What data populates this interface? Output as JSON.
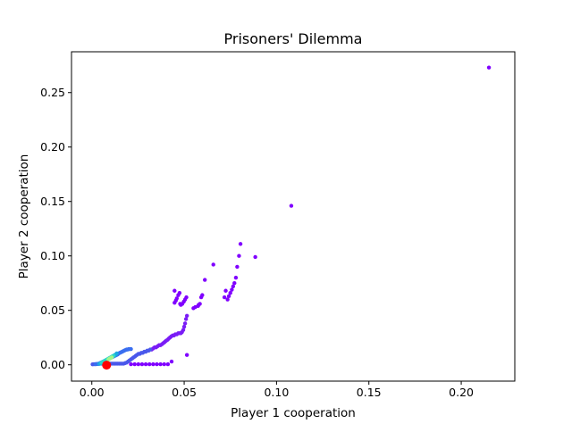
{
  "chart_data": {
    "type": "scatter",
    "title": "Prisoners' Dilemma",
    "xlabel": "Player 1 cooperation",
    "ylabel": "Player 2 cooperation",
    "xlim": [
      -0.011,
      0.229
    ],
    "ylim": [
      -0.015,
      0.2875
    ],
    "xticks": [
      0.0,
      0.05,
      0.1,
      0.15,
      0.2
    ],
    "xtick_labels": [
      "0.00",
      "0.05",
      "0.10",
      "0.15",
      "0.20"
    ],
    "yticks": [
      0.0,
      0.05,
      0.1,
      0.15,
      0.2,
      0.25
    ],
    "ytick_labels": [
      "0.00",
      "0.05",
      "0.10",
      "0.15",
      "0.20",
      "0.25"
    ],
    "grid": false,
    "legend": "none",
    "colormap": "rainbow",
    "series": [
      {
        "color": "#8000ff",
        "x": [
          0.215,
          0.108,
          0.0885,
          0.0805,
          0.0797,
          0.0787,
          0.078,
          0.0772,
          0.0765,
          0.0758,
          0.075,
          0.0742,
          0.0735,
          0.0725,
          0.0718,
          0.0658,
          0.0612,
          0.0598,
          0.0592,
          0.0585,
          0.0578,
          0.0575,
          0.056,
          0.055,
          0.0512,
          0.0505,
          0.0498,
          0.049,
          0.0482,
          0.0475,
          0.0468,
          0.046,
          0.0455,
          0.0448,
          0.0448,
          0.0478,
          0.0515,
          0.0432,
          0.0412,
          0.0392,
          0.0372,
          0.0352,
          0.0332,
          0.0312,
          0.0292,
          0.0272,
          0.0252,
          0.0232,
          0.0212
        ],
        "y": [
          0.273,
          0.146,
          0.099,
          0.111,
          0.1,
          0.09,
          0.08,
          0.075,
          0.072,
          0.069,
          0.066,
          0.063,
          0.06,
          0.068,
          0.062,
          0.092,
          0.078,
          0.064,
          0.062,
          0.056,
          0.055,
          0.054,
          0.053,
          0.052,
          0.062,
          0.06,
          0.058,
          0.056,
          0.055,
          0.066,
          0.064,
          0.061,
          0.059,
          0.057,
          0.068,
          0.056,
          0.009,
          0.003,
          0.0005,
          0.0005,
          0.0005,
          0.0005,
          0.0005,
          0.0005,
          0.0005,
          0.0005,
          0.0005,
          0.0005,
          0.0005
        ]
      },
      {
        "color": "#7a1cf6",
        "x": [
          0.0515,
          0.051,
          0.0505,
          0.05,
          0.0495,
          0.0488,
          0.0482,
          0.0476,
          0.0468,
          0.046,
          0.0452,
          0.0445,
          0.0438,
          0.043,
          0.0423,
          0.0416,
          0.041,
          0.0402,
          0.0395,
          0.0388,
          0.038,
          0.0372,
          0.0364,
          0.0356,
          0.0348,
          0.034,
          0.0332,
          0.0324
        ],
        "y": [
          0.045,
          0.042,
          0.038,
          0.035,
          0.032,
          0.03,
          0.029,
          0.029,
          0.029,
          0.028,
          0.028,
          0.027,
          0.027,
          0.026,
          0.025,
          0.024,
          0.023,
          0.022,
          0.021,
          0.02,
          0.019,
          0.018,
          0.018,
          0.017,
          0.016,
          0.016,
          0.015,
          0.014
        ]
      },
      {
        "color": "#4a58eb",
        "x": [
          0.0316,
          0.0308,
          0.03,
          0.0292,
          0.0284,
          0.0276,
          0.0268,
          0.026,
          0.0252,
          0.0244,
          0.0236,
          0.0228,
          0.022,
          0.0212,
          0.0204,
          0.0196,
          0.0188,
          0.018,
          0.0172,
          0.0164,
          0.0156,
          0.0148,
          0.014,
          0.0132,
          0.0124,
          0.0116,
          0.0108,
          0.01,
          0.0092,
          0.0084,
          0.0076,
          0.0068,
          0.006,
          0.0052,
          0.0044,
          0.0036,
          0.0028,
          0.002,
          0.0012,
          0.0004
        ],
        "y": [
          0.014,
          0.013,
          0.013,
          0.012,
          0.012,
          0.011,
          0.011,
          0.01,
          0.01,
          0.009,
          0.008,
          0.007,
          0.006,
          0.005,
          0.004,
          0.003,
          0.002,
          0.0015,
          0.001,
          0.001,
          0.001,
          0.001,
          0.001,
          0.001,
          0.001,
          0.001,
          0.001,
          0.001,
          0.001,
          0.001,
          0.001,
          0.001,
          0.001,
          0.001,
          0.001,
          0.0008,
          0.0007,
          0.0006,
          0.0005,
          0.0004
        ]
      },
      {
        "color": "#3a6ef0",
        "x": [
          0.0212,
          0.0206,
          0.02,
          0.0194,
          0.0188,
          0.0182,
          0.0176,
          0.017,
          0.0164,
          0.0158,
          0.0152,
          0.0146,
          0.014,
          0.0134,
          0.0128,
          0.0122,
          0.0116,
          0.011,
          0.0104,
          0.0098,
          0.0092,
          0.0086,
          0.008,
          0.0074,
          0.0068,
          0.0062,
          0.0056,
          0.005,
          0.0044,
          0.0038,
          0.0032,
          0.0026,
          0.002
        ],
        "y": [
          0.0145,
          0.0145,
          0.0145,
          0.014,
          0.014,
          0.0135,
          0.013,
          0.0125,
          0.012,
          0.0115,
          0.011,
          0.0105,
          0.0095,
          0.009,
          0.0085,
          0.008,
          0.0075,
          0.007,
          0.0065,
          0.006,
          0.0055,
          0.005,
          0.0045,
          0.004,
          0.0035,
          0.003,
          0.0025,
          0.002,
          0.0015,
          0.001,
          0.0008,
          0.0006,
          0.0005
        ]
      },
      {
        "color": "#1ca8e0",
        "x": [
          0.0135,
          0.013,
          0.0125,
          0.012,
          0.0115,
          0.011,
          0.0105,
          0.01,
          0.0095,
          0.009,
          0.0085,
          0.008,
          0.0075,
          0.007,
          0.0065,
          0.006,
          0.0055,
          0.005,
          0.0045,
          0.004
        ],
        "y": [
          0.0105,
          0.0095,
          0.009,
          0.0085,
          0.008,
          0.0075,
          0.007,
          0.0065,
          0.006,
          0.0055,
          0.005,
          0.0045,
          0.004,
          0.0035,
          0.003,
          0.0025,
          0.002,
          0.0015,
          0.001,
          0.0008
        ]
      },
      {
        "color": "#2cd8c8",
        "x": [
          0.0118,
          0.0112,
          0.0106,
          0.01,
          0.0094,
          0.0088,
          0.0082,
          0.0076,
          0.007,
          0.0064,
          0.0058,
          0.0052
        ],
        "y": [
          0.0082,
          0.0078,
          0.0072,
          0.0066,
          0.006,
          0.0054,
          0.0048,
          0.0042,
          0.0036,
          0.003,
          0.0024,
          0.0018
        ]
      },
      {
        "color": "#a4f48a",
        "x": [
          0.0108,
          0.0102,
          0.0096,
          0.009
        ],
        "y": [
          0.0068,
          0.0062,
          0.0056,
          0.005
        ]
      }
    ],
    "highlight": {
      "color": "#ff0000",
      "x": 0.008,
      "y": -0.0003
    }
  }
}
